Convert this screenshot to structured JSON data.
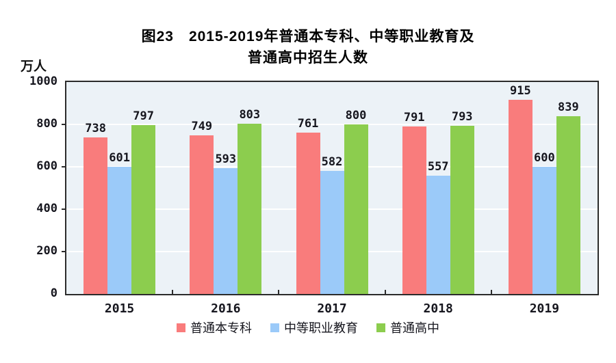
{
  "title": {
    "line1": "图23　2015-2019年普通本专科、中等职业教育及",
    "line2": "普通高中招生人数"
  },
  "y_axis_unit": "万人",
  "chart_data": {
    "type": "bar",
    "title": "图23 2015-2019年普通本专科、中等职业教育及普通高中招生人数",
    "xlabel": "",
    "ylabel": "万人",
    "ylim": [
      0,
      1000
    ],
    "yticks": [
      0,
      200,
      400,
      600,
      800,
      1000
    ],
    "grid": true,
    "legend_position": "bottom",
    "categories": [
      "2015",
      "2016",
      "2017",
      "2018",
      "2019"
    ],
    "series": [
      {
        "name": "普通本专科",
        "color": "#f97c7c",
        "values": [
          738,
          749,
          761,
          791,
          915
        ]
      },
      {
        "name": "中等职业教育",
        "color": "#9bcaf9",
        "values": [
          601,
          593,
          582,
          557,
          600
        ]
      },
      {
        "name": "普通高中",
        "color": "#8ccd4e",
        "values": [
          797,
          803,
          800,
          793,
          839
        ]
      }
    ]
  },
  "colors": {
    "plot_background": "#ecf2f7",
    "gridline": "#ffffff",
    "axis": "#2b2b2b",
    "text": "#16161e"
  }
}
